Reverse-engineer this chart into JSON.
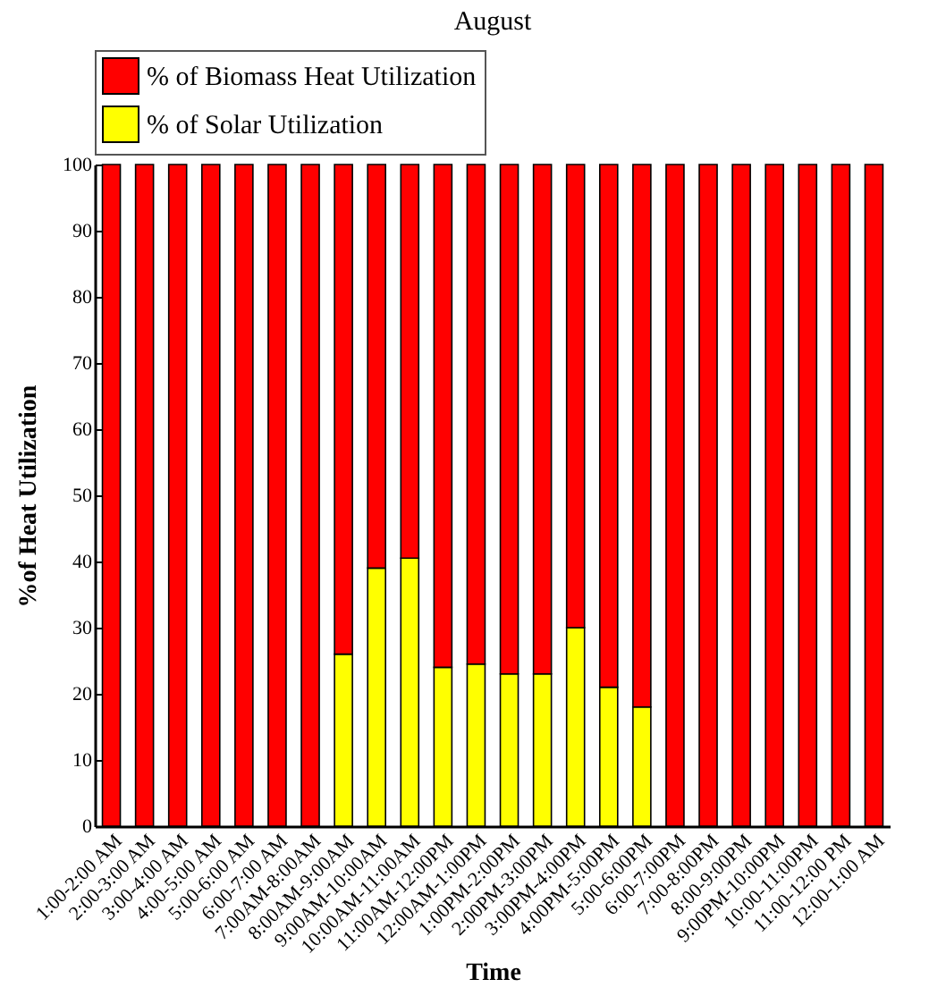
{
  "chart_data": {
    "type": "bar",
    "title": "August",
    "xlabel": "Time",
    "ylabel": "%of Heat Utilization",
    "stacked": true,
    "legend": "top",
    "categories": [
      "1:00-2:00 AM",
      "2:00-3:00 AM",
      "3:00-4:00 AM",
      "4:00-5:00 AM",
      "5:00-6:00 AM",
      "6:00-7:00 AM",
      "7:00AM-8:00AM",
      "8:00AM-9:00AM",
      "9:00AM-10:00AM",
      "10:00AM-11:00AM",
      "11:00AM-12:00PM",
      "12:00AM-1:00PM",
      "1:00PM-2:00PM",
      "2:00PM-3:00PM",
      "3:00PM-4:00PM",
      "4:00PM-5:00PM",
      "5:00-6:00PM",
      "6:00-7:00PM",
      "7:00-8:00PM",
      "8:00-9:00PM",
      "9:00PM-10:00PM",
      "10:00-11:00PM",
      "11:00-12:00 PM",
      "12:00-1:00 AM"
    ],
    "series": [
      {
        "name": "% of Solar Utilization",
        "color": "#ffff00",
        "values": [
          null,
          null,
          null,
          null,
          null,
          null,
          null,
          26,
          39,
          40.5,
          24,
          24.5,
          23,
          23,
          30,
          21,
          18,
          null,
          null,
          null,
          null,
          null,
          null,
          null
        ]
      },
      {
        "name": "% of Biomass Heat Utilization",
        "color": "#ff0000",
        "values": [
          100,
          100,
          100,
          100,
          100,
          100,
          100,
          74,
          61,
          59.5,
          76,
          75.5,
          77,
          77,
          70,
          79,
          82,
          100,
          100,
          100,
          100,
          100,
          100,
          100
        ]
      }
    ],
    "ylim": [
      0,
      100
    ],
    "yticks": [
      0,
      10,
      20,
      30,
      40,
      50,
      60,
      70,
      80,
      90,
      100
    ]
  }
}
